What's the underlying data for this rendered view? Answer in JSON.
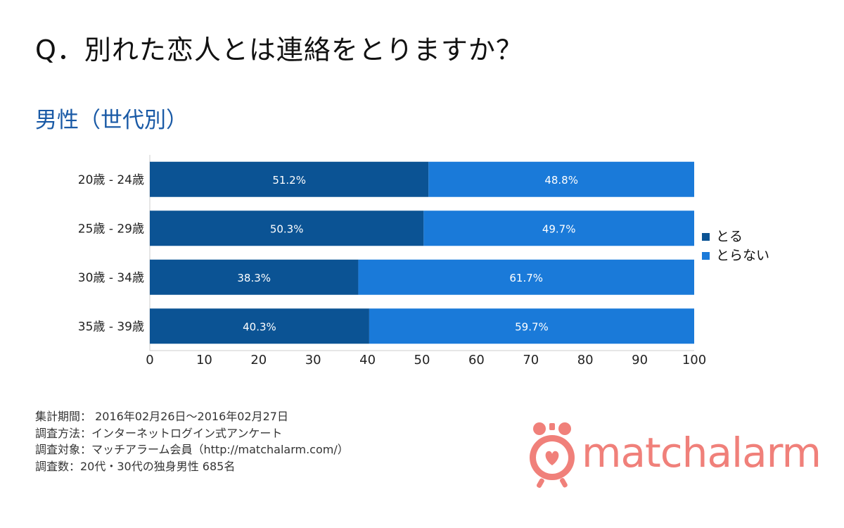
{
  "question": "Q．別れた恋人とは連絡をとりますか？",
  "subtitle": "男性（世代別）",
  "chart_data": {
    "type": "bar",
    "orientation": "horizontal",
    "stacked": true,
    "categories": [
      "20歳 - 24歳",
      "25歳 - 29歳",
      "30歳 - 34歳",
      "35歳 - 39歳"
    ],
    "series": [
      {
        "name": "とる",
        "values": [
          51.2,
          50.3,
          38.3,
          40.3
        ],
        "labels": [
          "51.2%",
          "50.3%",
          "38.3%",
          "40.3%"
        ],
        "color": "#0b5394"
      },
      {
        "name": "とらない",
        "values": [
          48.8,
          49.7,
          61.7,
          59.7
        ],
        "labels": [
          "48.8%",
          "49.7%",
          "61.7%",
          "59.7%"
        ],
        "color": "#1a7ad9"
      }
    ],
    "xlim": [
      0,
      100
    ],
    "xticks": [
      0,
      10,
      20,
      30,
      40,
      50,
      60,
      70,
      80,
      90,
      100
    ],
    "grid": false,
    "legend_position": "right"
  },
  "notes": [
    "集計期間： 2016年02月26日～2016年02月27日",
    "調査方法：インターネットログイン式アンケート",
    "調査対象：マッチアラーム会員（http://matchalarm.com/）",
    "調査数：20代・30代の独身男性 685名"
  ],
  "logo": {
    "part1": "match",
    "part2": "alarm",
    "color": "#f0807a"
  }
}
